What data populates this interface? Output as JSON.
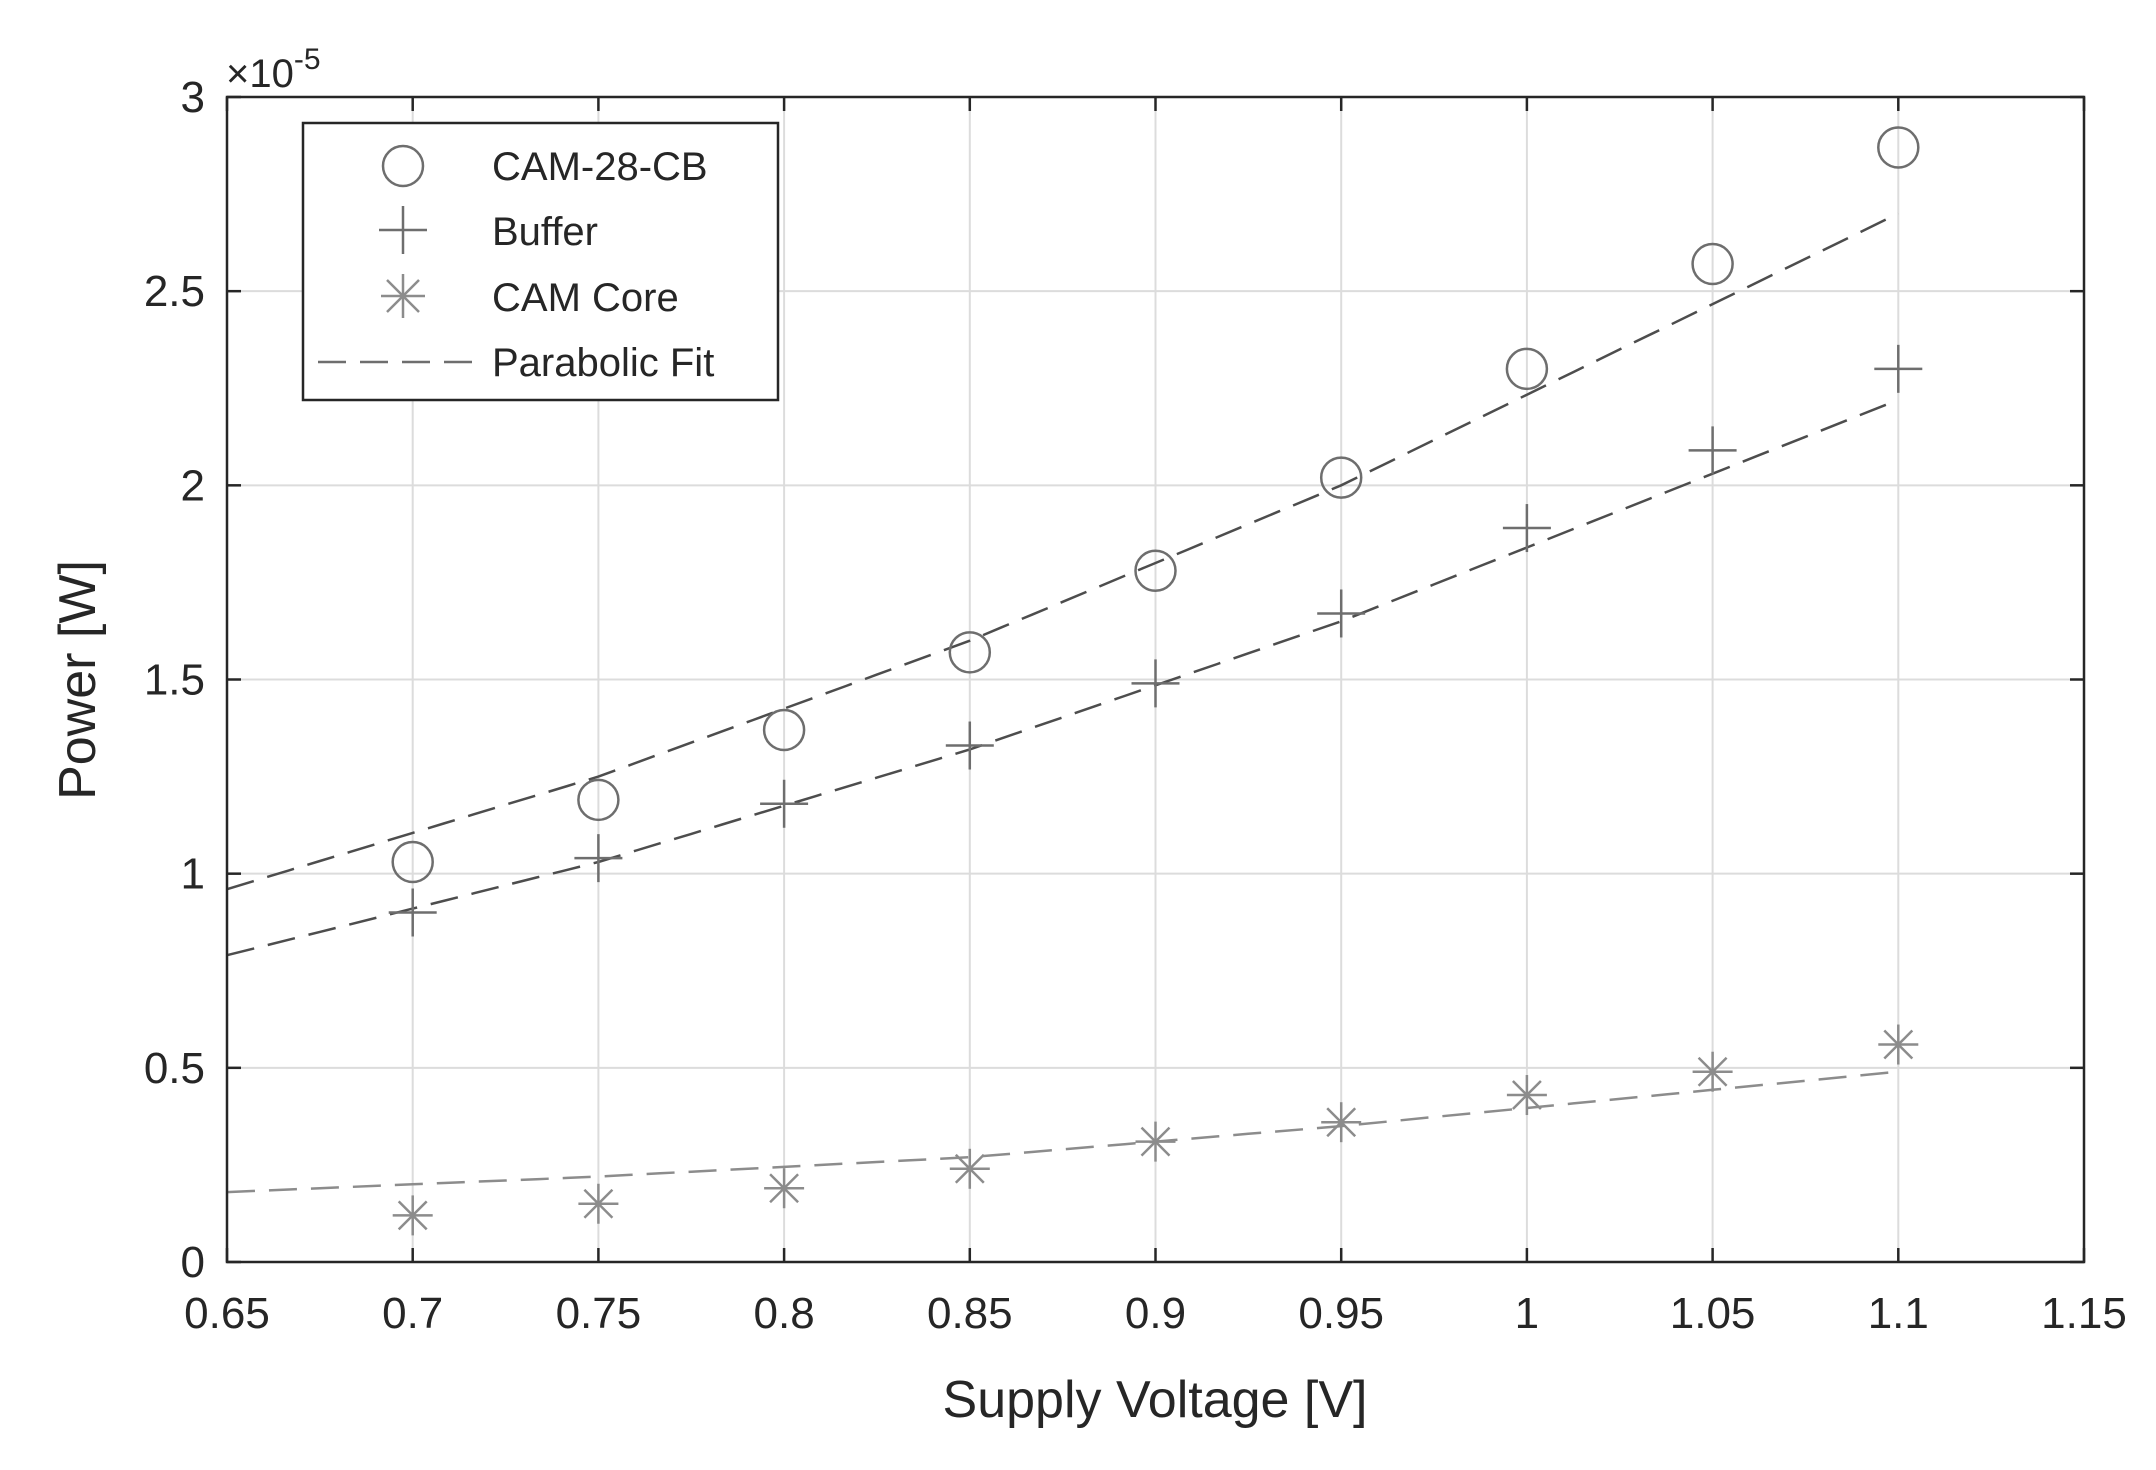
{
  "chart_data": {
    "type": "scatter",
    "xlabel": "Supply Voltage [V]",
    "ylabel": "Power [W]",
    "exponent_label": "×10",
    "exponent_power": "-5",
    "xlim": [
      0.65,
      1.15
    ],
    "ylim": [
      0,
      3
    ],
    "x_ticks": [
      0.65,
      0.7,
      0.75,
      0.8,
      0.85,
      0.9,
      0.95,
      1,
      1.05,
      1.1,
      1.15
    ],
    "x_tick_labels": [
      "0.65",
      "0.7",
      "0.75",
      "0.8",
      "0.85",
      "0.9",
      "0.95",
      "1",
      "1.05",
      "1.1",
      "1.15"
    ],
    "y_ticks": [
      0,
      0.5,
      1,
      1.5,
      2,
      2.5,
      3
    ],
    "y_tick_labels": [
      "0",
      "0.5",
      "1",
      "1.5",
      "2",
      "2.5",
      "3"
    ],
    "grid": true,
    "legend_position": "top-left",
    "x": [
      0.7,
      0.75,
      0.8,
      0.85,
      0.9,
      0.95,
      1.0,
      1.05,
      1.1
    ],
    "series": [
      {
        "name": "CAM-28-CB",
        "marker": "circle",
        "values": [
          1.03,
          1.19,
          1.37,
          1.57,
          1.78,
          2.02,
          2.3,
          2.57,
          2.87
        ],
        "fit": {
          "x": [
            0.65,
            0.75,
            0.85,
            0.95,
            1.1
          ],
          "y": [
            0.96,
            1.25,
            1.6,
            2.0,
            2.7
          ]
        }
      },
      {
        "name": "Buffer",
        "marker": "plus",
        "values": [
          0.9,
          1.04,
          1.18,
          1.33,
          1.49,
          1.67,
          1.89,
          2.09,
          2.3
        ],
        "fit": {
          "x": [
            0.65,
            0.75,
            0.85,
            0.95,
            1.1
          ],
          "y": [
            0.79,
            1.03,
            1.32,
            1.65,
            2.22
          ]
        }
      },
      {
        "name": "CAM Core",
        "marker": "asterisk",
        "values": [
          0.12,
          0.15,
          0.19,
          0.24,
          0.31,
          0.36,
          0.43,
          0.49,
          0.56
        ],
        "fit": {
          "x": [
            0.65,
            0.75,
            0.85,
            0.95,
            1.1
          ],
          "y": [
            0.18,
            0.22,
            0.27,
            0.35,
            0.49
          ]
        }
      }
    ],
    "legend": [
      {
        "label": "CAM-28-CB",
        "symbol": "circle"
      },
      {
        "label": "Buffer",
        "symbol": "plus"
      },
      {
        "label": "CAM Core",
        "symbol": "asterisk"
      },
      {
        "label": "Parabolic Fit",
        "symbol": "dashed-line"
      }
    ],
    "colors": {
      "axes": "#262626",
      "grid": "#dcdcdc",
      "marker": "#6e6e6e",
      "fit_dark": "#4d4d4d",
      "fit_light": "#8c8c8c"
    }
  }
}
